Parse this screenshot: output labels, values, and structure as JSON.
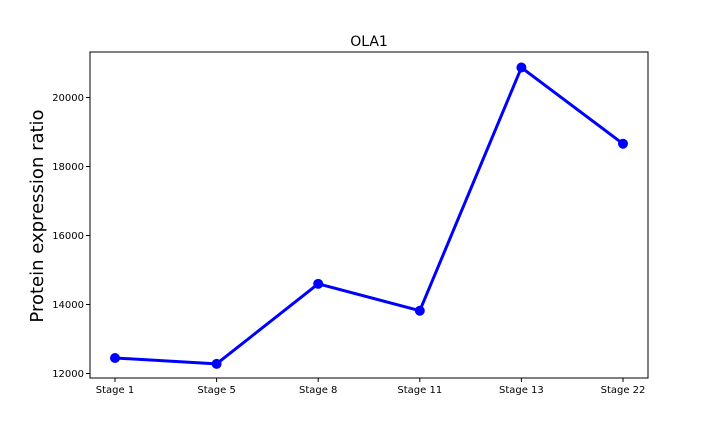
{
  "chart_data": {
    "type": "line",
    "title": "OLA1",
    "xlabel": "",
    "ylabel": "Protein expression ratio",
    "categories": [
      "Stage 1",
      "Stage 5",
      "Stage 8",
      "Stage 11",
      "Stage 13",
      "Stage 22"
    ],
    "series": [
      {
        "values": [
          12450,
          12280,
          14600,
          13820,
          20870,
          18660
        ],
        "color": "#0000ff"
      }
    ],
    "ylim": [
      11870,
      21320
    ],
    "yticks": [
      12000,
      14000,
      16000,
      18000,
      20000
    ],
    "grid": false,
    "legend": "none"
  }
}
